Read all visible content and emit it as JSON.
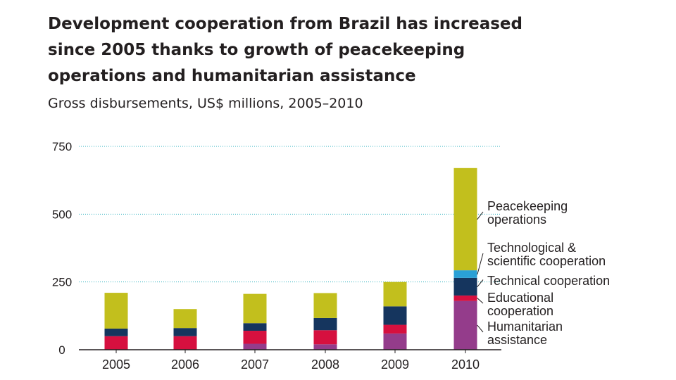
{
  "chart_data": {
    "type": "bar",
    "stacked": true,
    "title_lines": [
      "Development cooperation from Brazil has increased",
      "since 2005 thanks to growth of peacekeeping",
      "operations and humanitarian assistance"
    ],
    "subtitle": "Gross disbursements, US$ millions, 2005–2010",
    "categories": [
      "2005",
      "2006",
      "2007",
      "2008",
      "2009",
      "2010"
    ],
    "ylim": [
      0,
      750
    ],
    "yticks": [
      0,
      250,
      500,
      750
    ],
    "grid": true,
    "series": [
      {
        "name": "Humanitarian assistance",
        "label_lines": [
          "Humanitarian",
          "assistance"
        ],
        "color": "#943c8b",
        "values": [
          0,
          0,
          22,
          20,
          60,
          180
        ]
      },
      {
        "name": "Educational cooperation",
        "label_lines": [
          "Educational",
          "cooperation"
        ],
        "color": "#d6103f",
        "values": [
          50,
          50,
          48,
          52,
          32,
          20
        ]
      },
      {
        "name": "Technical cooperation",
        "label_lines": [
          "Technical cooperation"
        ],
        "color": "#15355e",
        "values": [
          28,
          30,
          28,
          45,
          68,
          65
        ]
      },
      {
        "name": "Technological & scientific cooperation",
        "label_lines": [
          "Technological &",
          "scientific cooperation"
        ],
        "color": "#2aa0d6",
        "values": [
          0,
          0,
          0,
          0,
          0,
          28
        ]
      },
      {
        "name": "Peacekeeping operations",
        "label_lines": [
          "Peacekeeping",
          "operations"
        ],
        "color": "#c2bf1d",
        "values": [
          132,
          70,
          108,
          92,
          90,
          377
        ]
      }
    ]
  }
}
